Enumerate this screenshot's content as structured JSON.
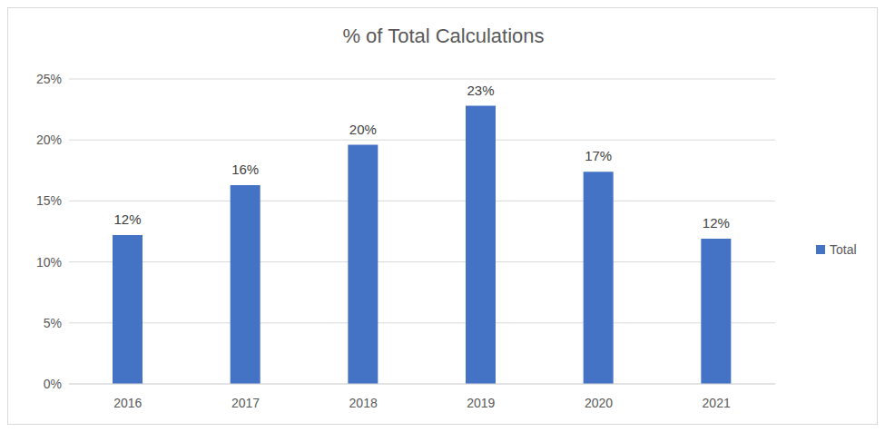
{
  "chart_data": {
    "type": "bar",
    "title": "% of Total Calculations",
    "categories": [
      "2016",
      "2017",
      "2018",
      "2019",
      "2020",
      "2021"
    ],
    "series": [
      {
        "name": "Total",
        "color": "#4472c4",
        "values": [
          12.2,
          16.3,
          19.6,
          22.8,
          17.4,
          11.9
        ],
        "value_labels": [
          "12%",
          "16%",
          "20%",
          "23%",
          "17%",
          "12%"
        ]
      }
    ],
    "ylim": [
      0,
      25
    ],
    "yticks": [
      {
        "value": 0,
        "label": "0%"
      },
      {
        "value": 5,
        "label": "5%"
      },
      {
        "value": 10,
        "label": "10%"
      },
      {
        "value": 15,
        "label": "15%"
      },
      {
        "value": 20,
        "label": "20%"
      },
      {
        "value": 25,
        "label": "25%"
      }
    ],
    "grid": true,
    "legend": "right",
    "data_labels": true
  }
}
